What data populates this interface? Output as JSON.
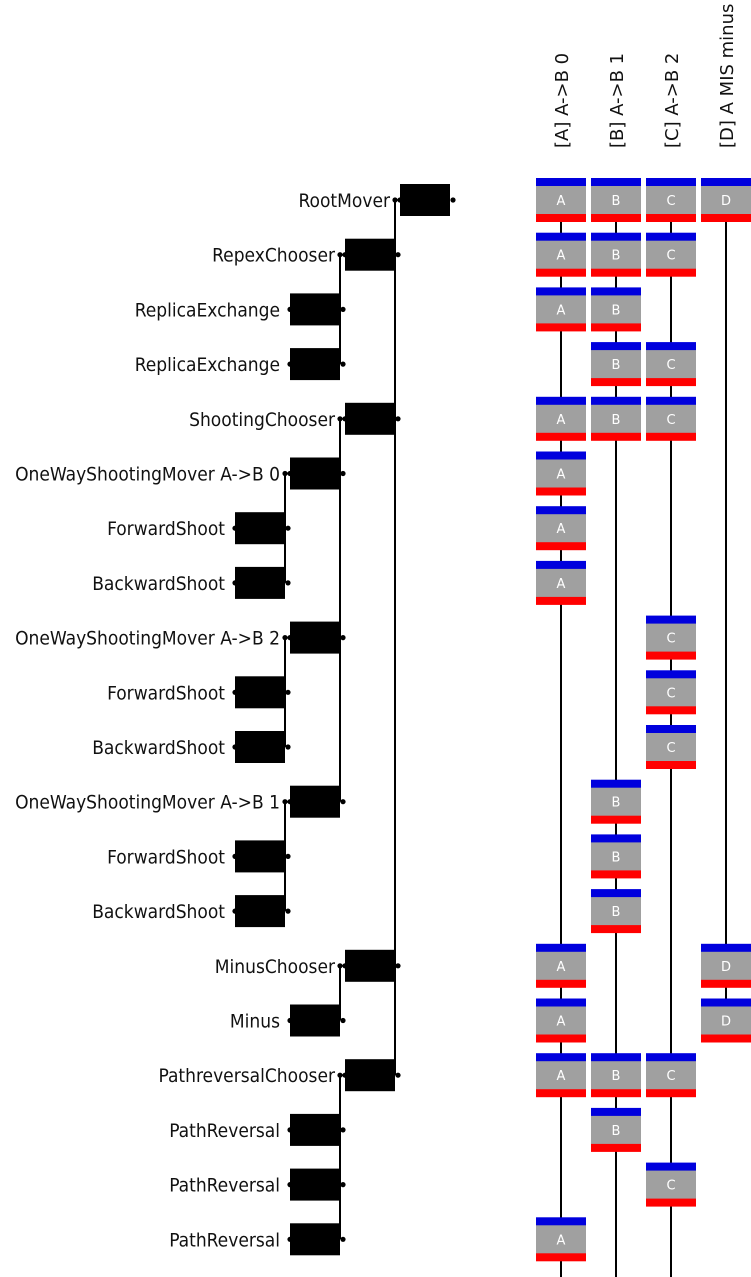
{
  "columns": [
    {
      "key": "A",
      "header": "[A] A->B 0"
    },
    {
      "key": "B",
      "header": "[B] A->B 1"
    },
    {
      "key": "C",
      "header": "[C] A->B 2"
    },
    {
      "key": "D",
      "header": "[D] A MIS minus"
    }
  ],
  "movers": [
    {
      "label": "RootMover",
      "depth": 0,
      "parent": null,
      "ensembles": [
        "A",
        "B",
        "C",
        "D"
      ]
    },
    {
      "label": "RepexChooser",
      "depth": 1,
      "parent": 0,
      "ensembles": [
        "A",
        "B",
        "C"
      ]
    },
    {
      "label": "ReplicaExchange",
      "depth": 2,
      "parent": 1,
      "ensembles": [
        "A",
        "B"
      ]
    },
    {
      "label": "ReplicaExchange",
      "depth": 2,
      "parent": 1,
      "ensembles": [
        "B",
        "C"
      ]
    },
    {
      "label": "ShootingChooser",
      "depth": 1,
      "parent": 0,
      "ensembles": [
        "A",
        "B",
        "C"
      ]
    },
    {
      "label": "OneWayShootingMover A->B 0",
      "depth": 2,
      "parent": 4,
      "ensembles": [
        "A"
      ]
    },
    {
      "label": "ForwardShoot",
      "depth": 3,
      "parent": 5,
      "ensembles": [
        "A"
      ]
    },
    {
      "label": "BackwardShoot",
      "depth": 3,
      "parent": 5,
      "ensembles": [
        "A"
      ]
    },
    {
      "label": "OneWayShootingMover A->B 2",
      "depth": 2,
      "parent": 4,
      "ensembles": [
        "C"
      ]
    },
    {
      "label": "ForwardShoot",
      "depth": 3,
      "parent": 8,
      "ensembles": [
        "C"
      ]
    },
    {
      "label": "BackwardShoot",
      "depth": 3,
      "parent": 8,
      "ensembles": [
        "C"
      ]
    },
    {
      "label": "OneWayShootingMover A->B 1",
      "depth": 2,
      "parent": 4,
      "ensembles": [
        "B"
      ]
    },
    {
      "label": "ForwardShoot",
      "depth": 3,
      "parent": 11,
      "ensembles": [
        "B"
      ]
    },
    {
      "label": "BackwardShoot",
      "depth": 3,
      "parent": 11,
      "ensembles": [
        "B"
      ]
    },
    {
      "label": "MinusChooser",
      "depth": 1,
      "parent": 0,
      "ensembles": [
        "A",
        "D"
      ]
    },
    {
      "label": "Minus",
      "depth": 2,
      "parent": 14,
      "ensembles": [
        "A",
        "D"
      ]
    },
    {
      "label": "PathreversalChooser",
      "depth": 1,
      "parent": 0,
      "ensembles": [
        "A",
        "B",
        "C"
      ]
    },
    {
      "label": "PathReversal",
      "depth": 2,
      "parent": 16,
      "ensembles": [
        "B"
      ]
    },
    {
      "label": "PathReversal",
      "depth": 2,
      "parent": 16,
      "ensembles": [
        "C"
      ]
    },
    {
      "label": "PathReversal",
      "depth": 2,
      "parent": 16,
      "ensembles": [
        "A"
      ]
    }
  ],
  "colors": {
    "box": "#000000",
    "block_fill": "#a0a0a0",
    "block_top": "#0000dd",
    "block_bottom": "#ff0000",
    "line": "#000000",
    "text": "#111111"
  }
}
